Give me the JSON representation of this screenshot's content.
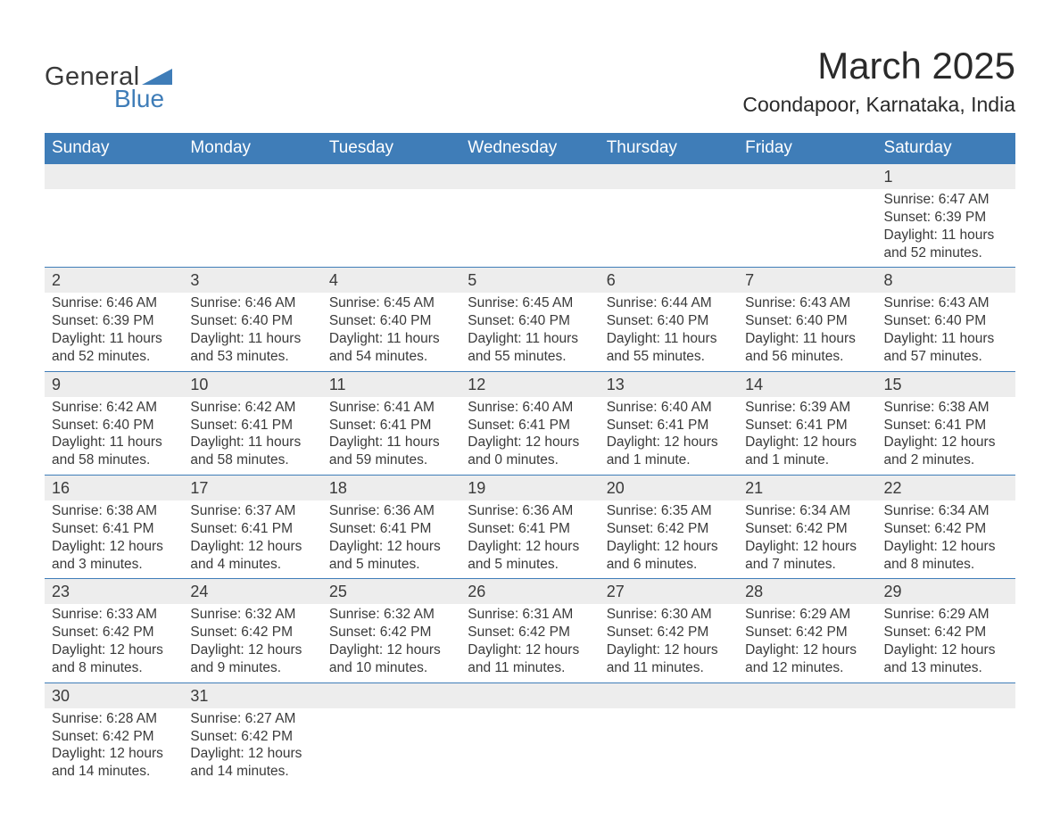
{
  "brand": {
    "general": "General",
    "blue": "Blue"
  },
  "title": "March 2025",
  "location": "Coondapoor, Karnataka, India",
  "colors": {
    "header_bg": "#3f7db8",
    "header_text": "#ffffff",
    "daynum_bg": "#ededed",
    "row_border": "#3f7db8",
    "text": "#3a3a3a",
    "logo_blue": "#3f7db8",
    "background": "#ffffff"
  },
  "typography": {
    "title_fontsize": 42,
    "location_fontsize": 23,
    "weekday_fontsize": 19,
    "daynum_fontsize": 18,
    "body_fontsize": 15.5,
    "logo_fontsize": 29
  },
  "weekdays": [
    "Sunday",
    "Monday",
    "Tuesday",
    "Wednesday",
    "Thursday",
    "Friday",
    "Saturday"
  ],
  "weeks": [
    {
      "nums": [
        "",
        "",
        "",
        "",
        "",
        "",
        "1"
      ],
      "cells": [
        {},
        {},
        {},
        {},
        {},
        {},
        {
          "sunrise": "Sunrise: 6:47 AM",
          "sunset": "Sunset: 6:39 PM",
          "day1": "Daylight: 11 hours",
          "day2": "and 52 minutes."
        }
      ]
    },
    {
      "nums": [
        "2",
        "3",
        "4",
        "5",
        "6",
        "7",
        "8"
      ],
      "cells": [
        {
          "sunrise": "Sunrise: 6:46 AM",
          "sunset": "Sunset: 6:39 PM",
          "day1": "Daylight: 11 hours",
          "day2": "and 52 minutes."
        },
        {
          "sunrise": "Sunrise: 6:46 AM",
          "sunset": "Sunset: 6:40 PM",
          "day1": "Daylight: 11 hours",
          "day2": "and 53 minutes."
        },
        {
          "sunrise": "Sunrise: 6:45 AM",
          "sunset": "Sunset: 6:40 PM",
          "day1": "Daylight: 11 hours",
          "day2": "and 54 minutes."
        },
        {
          "sunrise": "Sunrise: 6:45 AM",
          "sunset": "Sunset: 6:40 PM",
          "day1": "Daylight: 11 hours",
          "day2": "and 55 minutes."
        },
        {
          "sunrise": "Sunrise: 6:44 AM",
          "sunset": "Sunset: 6:40 PM",
          "day1": "Daylight: 11 hours",
          "day2": "and 55 minutes."
        },
        {
          "sunrise": "Sunrise: 6:43 AM",
          "sunset": "Sunset: 6:40 PM",
          "day1": "Daylight: 11 hours",
          "day2": "and 56 minutes."
        },
        {
          "sunrise": "Sunrise: 6:43 AM",
          "sunset": "Sunset: 6:40 PM",
          "day1": "Daylight: 11 hours",
          "day2": "and 57 minutes."
        }
      ]
    },
    {
      "nums": [
        "9",
        "10",
        "11",
        "12",
        "13",
        "14",
        "15"
      ],
      "cells": [
        {
          "sunrise": "Sunrise: 6:42 AM",
          "sunset": "Sunset: 6:40 PM",
          "day1": "Daylight: 11 hours",
          "day2": "and 58 minutes."
        },
        {
          "sunrise": "Sunrise: 6:42 AM",
          "sunset": "Sunset: 6:41 PM",
          "day1": "Daylight: 11 hours",
          "day2": "and 58 minutes."
        },
        {
          "sunrise": "Sunrise: 6:41 AM",
          "sunset": "Sunset: 6:41 PM",
          "day1": "Daylight: 11 hours",
          "day2": "and 59 minutes."
        },
        {
          "sunrise": "Sunrise: 6:40 AM",
          "sunset": "Sunset: 6:41 PM",
          "day1": "Daylight: 12 hours",
          "day2": "and 0 minutes."
        },
        {
          "sunrise": "Sunrise: 6:40 AM",
          "sunset": "Sunset: 6:41 PM",
          "day1": "Daylight: 12 hours",
          "day2": "and 1 minute."
        },
        {
          "sunrise": "Sunrise: 6:39 AM",
          "sunset": "Sunset: 6:41 PM",
          "day1": "Daylight: 12 hours",
          "day2": "and 1 minute."
        },
        {
          "sunrise": "Sunrise: 6:38 AM",
          "sunset": "Sunset: 6:41 PM",
          "day1": "Daylight: 12 hours",
          "day2": "and 2 minutes."
        }
      ]
    },
    {
      "nums": [
        "16",
        "17",
        "18",
        "19",
        "20",
        "21",
        "22"
      ],
      "cells": [
        {
          "sunrise": "Sunrise: 6:38 AM",
          "sunset": "Sunset: 6:41 PM",
          "day1": "Daylight: 12 hours",
          "day2": "and 3 minutes."
        },
        {
          "sunrise": "Sunrise: 6:37 AM",
          "sunset": "Sunset: 6:41 PM",
          "day1": "Daylight: 12 hours",
          "day2": "and 4 minutes."
        },
        {
          "sunrise": "Sunrise: 6:36 AM",
          "sunset": "Sunset: 6:41 PM",
          "day1": "Daylight: 12 hours",
          "day2": "and 5 minutes."
        },
        {
          "sunrise": "Sunrise: 6:36 AM",
          "sunset": "Sunset: 6:41 PM",
          "day1": "Daylight: 12 hours",
          "day2": "and 5 minutes."
        },
        {
          "sunrise": "Sunrise: 6:35 AM",
          "sunset": "Sunset: 6:42 PM",
          "day1": "Daylight: 12 hours",
          "day2": "and 6 minutes."
        },
        {
          "sunrise": "Sunrise: 6:34 AM",
          "sunset": "Sunset: 6:42 PM",
          "day1": "Daylight: 12 hours",
          "day2": "and 7 minutes."
        },
        {
          "sunrise": "Sunrise: 6:34 AM",
          "sunset": "Sunset: 6:42 PM",
          "day1": "Daylight: 12 hours",
          "day2": "and 8 minutes."
        }
      ]
    },
    {
      "nums": [
        "23",
        "24",
        "25",
        "26",
        "27",
        "28",
        "29"
      ],
      "cells": [
        {
          "sunrise": "Sunrise: 6:33 AM",
          "sunset": "Sunset: 6:42 PM",
          "day1": "Daylight: 12 hours",
          "day2": "and 8 minutes."
        },
        {
          "sunrise": "Sunrise: 6:32 AM",
          "sunset": "Sunset: 6:42 PM",
          "day1": "Daylight: 12 hours",
          "day2": "and 9 minutes."
        },
        {
          "sunrise": "Sunrise: 6:32 AM",
          "sunset": "Sunset: 6:42 PM",
          "day1": "Daylight: 12 hours",
          "day2": "and 10 minutes."
        },
        {
          "sunrise": "Sunrise: 6:31 AM",
          "sunset": "Sunset: 6:42 PM",
          "day1": "Daylight: 12 hours",
          "day2": "and 11 minutes."
        },
        {
          "sunrise": "Sunrise: 6:30 AM",
          "sunset": "Sunset: 6:42 PM",
          "day1": "Daylight: 12 hours",
          "day2": "and 11 minutes."
        },
        {
          "sunrise": "Sunrise: 6:29 AM",
          "sunset": "Sunset: 6:42 PM",
          "day1": "Daylight: 12 hours",
          "day2": "and 12 minutes."
        },
        {
          "sunrise": "Sunrise: 6:29 AM",
          "sunset": "Sunset: 6:42 PM",
          "day1": "Daylight: 12 hours",
          "day2": "and 13 minutes."
        }
      ]
    },
    {
      "nums": [
        "30",
        "31",
        "",
        "",
        "",
        "",
        ""
      ],
      "cells": [
        {
          "sunrise": "Sunrise: 6:28 AM",
          "sunset": "Sunset: 6:42 PM",
          "day1": "Daylight: 12 hours",
          "day2": "and 14 minutes."
        },
        {
          "sunrise": "Sunrise: 6:27 AM",
          "sunset": "Sunset: 6:42 PM",
          "day1": "Daylight: 12 hours",
          "day2": "and 14 minutes."
        },
        {},
        {},
        {},
        {},
        {}
      ]
    }
  ]
}
